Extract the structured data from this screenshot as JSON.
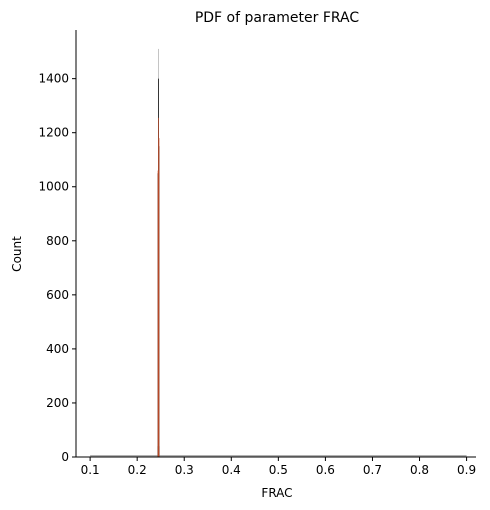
{
  "colors": {
    "axis": "#000000",
    "hist_gray": "#9e9e9e",
    "hist_black": "#000000",
    "hist_orange": "#c44e2a",
    "background": "#ffffff"
  },
  "chart_data": {
    "type": "histogram",
    "title": "PDF of parameter FRAC",
    "xlabel": "FRAC",
    "ylabel": "Count",
    "xlim": [
      0.07,
      0.92
    ],
    "ylim": [
      0,
      1580
    ],
    "xticks": [
      0.1,
      0.2,
      0.3,
      0.4,
      0.5,
      0.6,
      0.7,
      0.8,
      0.9
    ],
    "xtick_labels": [
      "0.1",
      "0.2",
      "0.3",
      "0.4",
      "0.5",
      "0.6",
      "0.7",
      "0.8",
      "0.9"
    ],
    "yticks": [
      0,
      200,
      400,
      600,
      800,
      1000,
      1200,
      1400
    ],
    "ytick_labels": [
      "0",
      "200",
      "400",
      "600",
      "800",
      "1000",
      "1200",
      "1400"
    ],
    "grid": false,
    "legend": "none",
    "baseline_range": [
      0.1,
      0.9
    ],
    "series": [
      {
        "color": "gray",
        "bins": [
          {
            "x0": 0.243,
            "x1": 0.2445,
            "count": 40
          },
          {
            "x0": 0.2445,
            "x1": 0.246,
            "count": 1510
          },
          {
            "x0": 0.246,
            "x1": 0.2475,
            "count": 40
          }
        ]
      },
      {
        "color": "black",
        "bins": [
          {
            "x0": 0.2435,
            "x1": 0.2445,
            "count": 1050
          },
          {
            "x0": 0.2445,
            "x1": 0.2455,
            "count": 1400
          },
          {
            "x0": 0.2455,
            "x1": 0.2465,
            "count": 1150
          }
        ]
      },
      {
        "color": "orange",
        "bins": [
          {
            "x0": 0.2435,
            "x1": 0.2445,
            "count": 1060
          },
          {
            "x0": 0.2445,
            "x1": 0.2455,
            "count": 1255
          },
          {
            "x0": 0.2455,
            "x1": 0.2465,
            "count": 1180
          }
        ]
      }
    ]
  }
}
